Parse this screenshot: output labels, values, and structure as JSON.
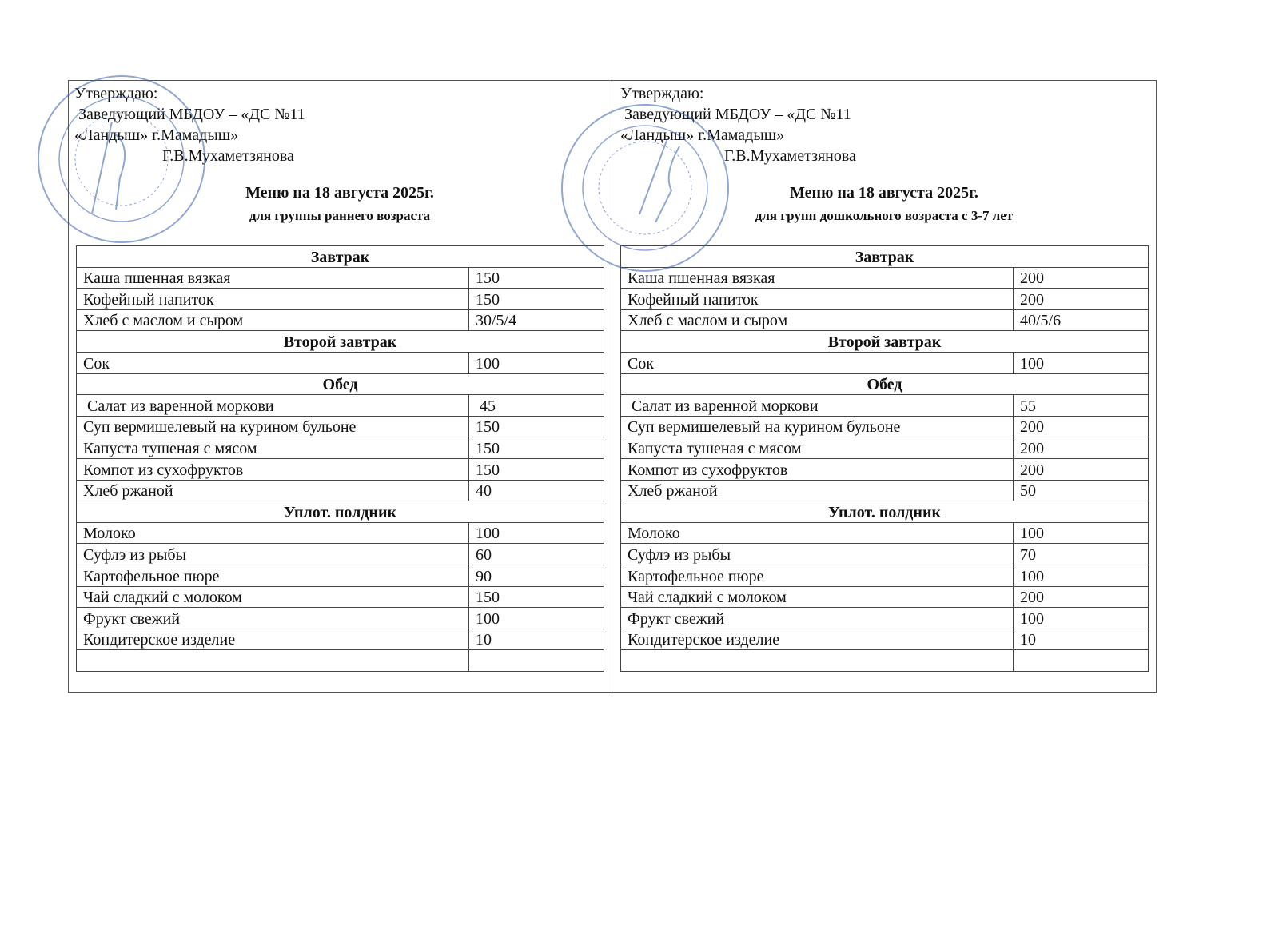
{
  "stamp_color": "#3a5fb0",
  "panels": [
    {
      "approve": [
        "Утверждаю:",
        " Заведующий МБДОУ – «ДС №11",
        "«Ландыш» г.Мамадыш»",
        "                      Г.В.Мухаметзянова"
      ],
      "title": "Меню на 18 августа 2025г.",
      "subtitle": "для группы раннего возраста",
      "rows": [
        {
          "section": "Завтрак"
        },
        {
          "item": "Каша пшенная вязкая",
          "value": "150"
        },
        {
          "item": "Кофейный напиток",
          "value": "150"
        },
        {
          "item": "Хлеб с маслом и сыром",
          "value": "30/5/4"
        },
        {
          "section": "Второй завтрак"
        },
        {
          "item": "Сок",
          "value": "100"
        },
        {
          "section": "Обед"
        },
        {
          "item": " Салат из варенной моркови",
          "value": " 45"
        },
        {
          "item": "Суп вермишелевый на курином бульоне",
          "value": "150"
        },
        {
          "item": "Капуста тушеная с мясом",
          "value": "150"
        },
        {
          "item": "Компот из сухофруктов",
          "value": "150"
        },
        {
          "item": "Хлеб ржаной",
          "value": "40"
        },
        {
          "section": "Уплот. полдник"
        },
        {
          "item": "Молоко",
          "value": "100"
        },
        {
          "item": "Суфлэ из рыбы",
          "value": "60"
        },
        {
          "item": "Картофельное пюре",
          "value": "90"
        },
        {
          "item": "Чай сладкий с молоком",
          "value": "150"
        },
        {
          "item": "Фрукт свежий",
          "value": "100"
        },
        {
          "item": "Кондитерское изделие",
          "value": "10"
        },
        {
          "item": "",
          "value": ""
        }
      ]
    },
    {
      "approve": [
        "Утверждаю:",
        " Заведующий МБДОУ – «ДС №11",
        "«Ландыш» г.Мамадыш»",
        "                          Г.В.Мухаметзянова"
      ],
      "title": "Меню на 18 августа  2025г.",
      "subtitle": "для групп дошкольного возраста с 3-7 лет",
      "rows": [
        {
          "section": "Завтрак"
        },
        {
          "item": "Каша пшенная вязкая",
          "value": "200"
        },
        {
          "item": "Кофейный напиток",
          "value": "200"
        },
        {
          "item": "Хлеб с маслом и сыром",
          "value": "40/5/6"
        },
        {
          "section": "Второй завтрак"
        },
        {
          "item": "Сок",
          "value": "100"
        },
        {
          "section": "Обед"
        },
        {
          "item": " Салат из варенной моркови",
          "value": "55"
        },
        {
          "item": "Суп вермишелевый на курином бульоне",
          "value": "200"
        },
        {
          "item": "Капуста тушеная с мясом",
          "value": "200"
        },
        {
          "item": "Компот из сухофруктов",
          "value": "200"
        },
        {
          "item": "Хлеб ржаной",
          "value": "50"
        },
        {
          "section": "Уплот. полдник"
        },
        {
          "item": "Молоко",
          "value": "100"
        },
        {
          "item": "Суфлэ из рыбы",
          "value": "70"
        },
        {
          "item": "Картофельное пюре",
          "value": "100"
        },
        {
          "item": "Чай сладкий с молоком",
          "value": "200"
        },
        {
          "item": "Фрукт свежий",
          "value": "100"
        },
        {
          "item": "Кондитерское изделие",
          "value": "10"
        },
        {
          "item": "",
          "value": ""
        }
      ]
    }
  ]
}
